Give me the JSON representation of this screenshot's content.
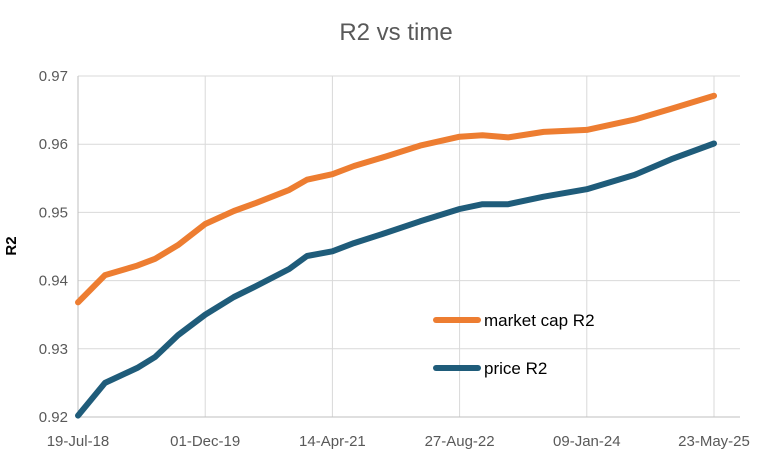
{
  "chart_data": {
    "type": "line",
    "title": "R2 vs time",
    "xlabel": "",
    "ylabel": "R2",
    "x_ticks": [
      "19-Jul-18",
      "01-Dec-19",
      "14-Apr-21",
      "27-Aug-22",
      "09-Jan-24",
      "23-May-25"
    ],
    "x_range": [
      "19-Jul-18",
      "23-May-25"
    ],
    "ylim": [
      0.92,
      0.97
    ],
    "y_ticks": [
      "0.92",
      "0.93",
      "0.94",
      "0.95",
      "0.96",
      "0.97"
    ],
    "grid": true,
    "legend_position": "center-right",
    "series": [
      {
        "name": "market cap R2",
        "color": "#ED7D31",
        "x": [
          "19-Jul-18",
          "02-Nov-18",
          "09-Mar-19",
          "18-May-19",
          "16-Aug-19",
          "01-Dec-19",
          "23-Mar-20",
          "18-Jun-20",
          "26-Oct-20",
          "04-Jan-21",
          "14-Apr-21",
          "08-Jul-21",
          "10-Nov-21",
          "25-Mar-22",
          "27-Aug-22",
          "25-Nov-22",
          "06-Mar-23",
          "23-Jul-23",
          "09-Jan-24",
          "15-Jul-24",
          "06-Dec-24",
          "23-May-25"
        ],
        "y": [
          0.9368,
          0.9408,
          0.9422,
          0.9432,
          0.9452,
          0.9483,
          0.9502,
          0.9514,
          0.9533,
          0.9548,
          0.9556,
          0.9568,
          0.9582,
          0.9598,
          0.9611,
          0.9613,
          0.961,
          0.9618,
          0.9621,
          0.9636,
          0.9652,
          0.9671
        ]
      },
      {
        "name": "price R2",
        "color": "#1F5C7A",
        "x": [
          "19-Jul-18",
          "02-Nov-18",
          "09-Mar-19",
          "18-May-19",
          "16-Aug-19",
          "01-Dec-19",
          "23-Mar-20",
          "18-Jun-20",
          "26-Oct-20",
          "04-Jan-21",
          "14-Apr-21",
          "08-Jul-21",
          "10-Nov-21",
          "25-Mar-22",
          "27-Aug-22",
          "25-Nov-22",
          "06-Mar-23",
          "23-Jul-23",
          "09-Jan-24",
          "15-Jul-24",
          "06-Dec-24",
          "23-May-25"
        ],
        "y": [
          0.9202,
          0.925,
          0.9272,
          0.9288,
          0.932,
          0.935,
          0.9376,
          0.9392,
          0.9417,
          0.9436,
          0.9443,
          0.9455,
          0.947,
          0.9487,
          0.9505,
          0.9512,
          0.9512,
          0.9523,
          0.9534,
          0.9555,
          0.9578,
          0.9601
        ]
      }
    ]
  }
}
